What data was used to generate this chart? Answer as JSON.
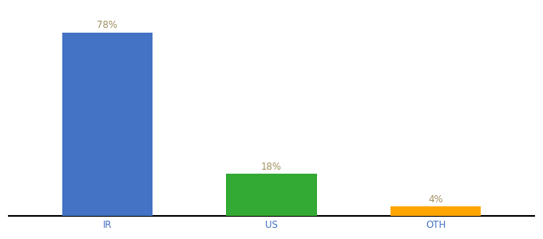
{
  "categories": [
    "IR",
    "US",
    "OTH"
  ],
  "values": [
    78,
    18,
    4
  ],
  "labels": [
    "78%",
    "18%",
    "4%"
  ],
  "bar_colors": [
    "#4472C4",
    "#33AA33",
    "#FFA500"
  ],
  "background_color": "#ffffff",
  "label_color": "#a09060",
  "axis_line_color": "#000000",
  "bar_width": 0.55,
  "ylim": [
    0,
    88
  ],
  "label_fontsize": 8.5,
  "tick_fontsize": 8.5,
  "x_positions": [
    0,
    1,
    2
  ],
  "tick_color": "#4472C4"
}
